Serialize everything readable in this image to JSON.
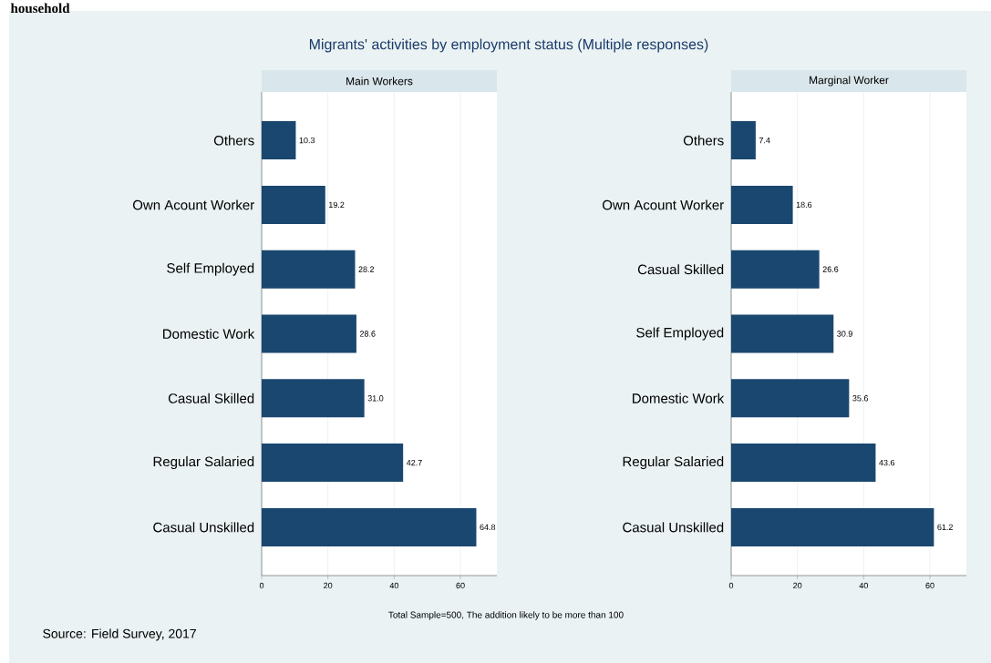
{
  "chart_data": [
    {
      "type": "bar",
      "orientation": "horizontal",
      "title": "Migrants' activities by employment status (Multiple responses)",
      "subtitle": "Main Workers",
      "categories": [
        "Others",
        "Own Acount Worker",
        "Self Employed",
        "Domestic Work",
        "Casual Skilled",
        "Regular Salaried",
        "Casual Unskilled"
      ],
      "values": [
        10.3,
        19.2,
        28.2,
        28.6,
        31.0,
        42.7,
        64.8
      ],
      "value_labels": [
        "10.3",
        "19.2",
        "28.2",
        "28.6",
        "31.0",
        "42.7",
        "64.8"
      ],
      "color": "#1a476f",
      "xlim": [
        0,
        71
      ],
      "xticks": [
        0,
        20,
        40,
        60
      ],
      "grid": "x",
      "annotations": [
        "household"
      ]
    },
    {
      "type": "bar",
      "orientation": "horizontal",
      "subtitle": "Marginal Worker",
      "categories": [
        "Others",
        "Own Acount Worker",
        "Casual Skilled",
        "Self Employed",
        "Domestic Work",
        "Regular Salaried",
        "Casual Unskilled"
      ],
      "values": [
        7.4,
        18.6,
        26.6,
        30.9,
        35.6,
        43.6,
        61.2
      ],
      "value_labels": [
        "7.4",
        "18.6",
        "26.6",
        "30.9",
        "35.6",
        "43.6",
        "61.2"
      ],
      "color": "#1a476f",
      "xlim": [
        0,
        71
      ],
      "xticks": [
        0,
        20,
        40,
        60
      ],
      "grid": "x",
      "annotations": [
        "Total Sample=500, The addition likely to be more than 100",
        "Source: Field Survey, 2017"
      ]
    }
  ]
}
